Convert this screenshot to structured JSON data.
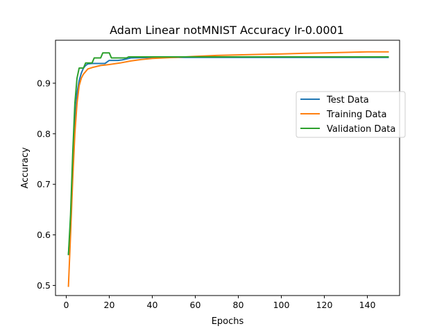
{
  "chart_data": {
    "type": "line",
    "title": "Adam Linear notMNIST Accuracy lr-0.0001",
    "xlabel": "Epochs",
    "ylabel": "Accuracy",
    "xlim": [
      -5,
      155
    ],
    "ylim": [
      0.48,
      0.985
    ],
    "xticks": [
      0,
      20,
      40,
      60,
      80,
      100,
      120,
      140
    ],
    "yticks": [
      0.5,
      0.6,
      0.7,
      0.8,
      0.9
    ],
    "xtick_labels": [
      "0",
      "20",
      "40",
      "60",
      "80",
      "100",
      "120",
      "140"
    ],
    "ytick_labels": [
      "0.5",
      "0.6",
      "0.7",
      "0.8",
      "0.9"
    ],
    "grid": false,
    "legend_position": "center-right",
    "series": [
      {
        "name": "Test Data",
        "color": "#1f77b4",
        "x": [
          1,
          2,
          3,
          4,
          5,
          6,
          7,
          8,
          9,
          10,
          12,
          14,
          16,
          18,
          20,
          22,
          24,
          26,
          28,
          30,
          40,
          60,
          80,
          100,
          120,
          140,
          150
        ],
        "y": [
          0.56,
          0.62,
          0.72,
          0.82,
          0.88,
          0.905,
          0.92,
          0.93,
          0.935,
          0.938,
          0.939,
          0.939,
          0.939,
          0.939,
          0.945,
          0.945,
          0.945,
          0.946,
          0.948,
          0.95,
          0.951,
          0.951,
          0.951,
          0.951,
          0.951,
          0.951,
          0.951
        ]
      },
      {
        "name": "Training Data",
        "color": "#ff7f0e",
        "x": [
          1,
          2,
          3,
          4,
          5,
          6,
          7,
          8,
          9,
          10,
          12,
          14,
          16,
          18,
          20,
          25,
          30,
          35,
          40,
          50,
          60,
          70,
          80,
          90,
          100,
          110,
          120,
          130,
          140,
          150
        ],
        "y": [
          0.497,
          0.6,
          0.71,
          0.8,
          0.86,
          0.895,
          0.91,
          0.918,
          0.923,
          0.928,
          0.931,
          0.933,
          0.935,
          0.936,
          0.937,
          0.94,
          0.944,
          0.947,
          0.949,
          0.951,
          0.953,
          0.955,
          0.956,
          0.957,
          0.958,
          0.959,
          0.96,
          0.961,
          0.962,
          0.962
        ]
      },
      {
        "name": "Validation Data",
        "color": "#2ca02c",
        "x": [
          1,
          2,
          3,
          4,
          5,
          6,
          7,
          8,
          9,
          10,
          12,
          13,
          14,
          16,
          17,
          18,
          20,
          21,
          22,
          28,
          29,
          40,
          60,
          80,
          100,
          120,
          140,
          150
        ],
        "y": [
          0.56,
          0.64,
          0.76,
          0.86,
          0.91,
          0.93,
          0.93,
          0.93,
          0.94,
          0.94,
          0.94,
          0.95,
          0.95,
          0.95,
          0.96,
          0.96,
          0.96,
          0.95,
          0.95,
          0.95,
          0.952,
          0.952,
          0.952,
          0.952,
          0.952,
          0.952,
          0.952,
          0.952
        ]
      }
    ]
  }
}
